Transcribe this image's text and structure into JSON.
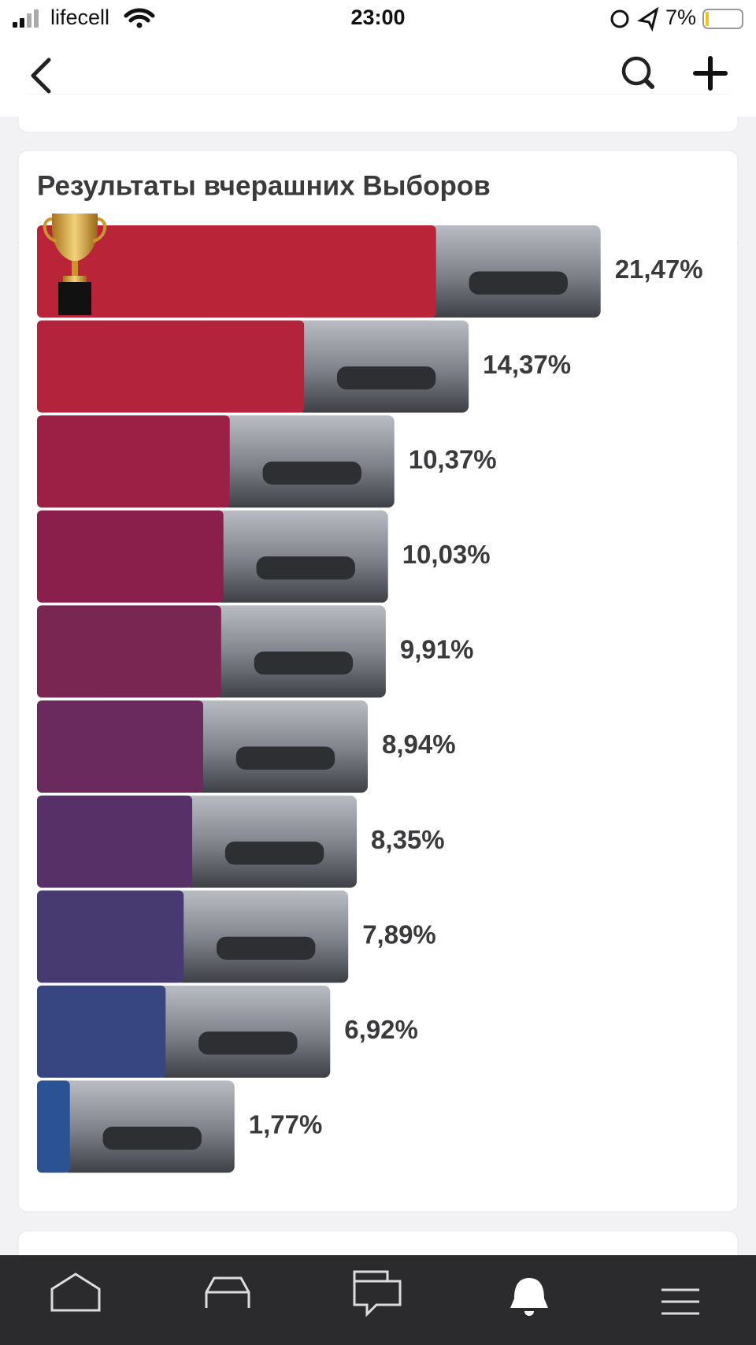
{
  "status_bar": {
    "carrier": "lifecell",
    "time": "23:00",
    "battery": "7%"
  },
  "chart_data": {
    "type": "bar",
    "title": "Результаты вчерашних Выборов",
    "values": [
      21.47,
      14.37,
      10.37,
      10.03,
      9.91,
      8.94,
      8.35,
      7.89,
      6.92,
      1.77
    ],
    "value_labels": [
      "21,47%",
      "14,37%",
      "10,37%",
      "10,03%",
      "9,91%",
      "8,94%",
      "8,35%",
      "7,89%",
      "6,92%",
      "1,77%"
    ],
    "colors": [
      "#ba2439",
      "#b4233c",
      "#9c2045",
      "#8a1f4b",
      "#7a2653",
      "#6a2a5d",
      "#563067",
      "#473a71",
      "#374680",
      "#2b5394"
    ]
  }
}
